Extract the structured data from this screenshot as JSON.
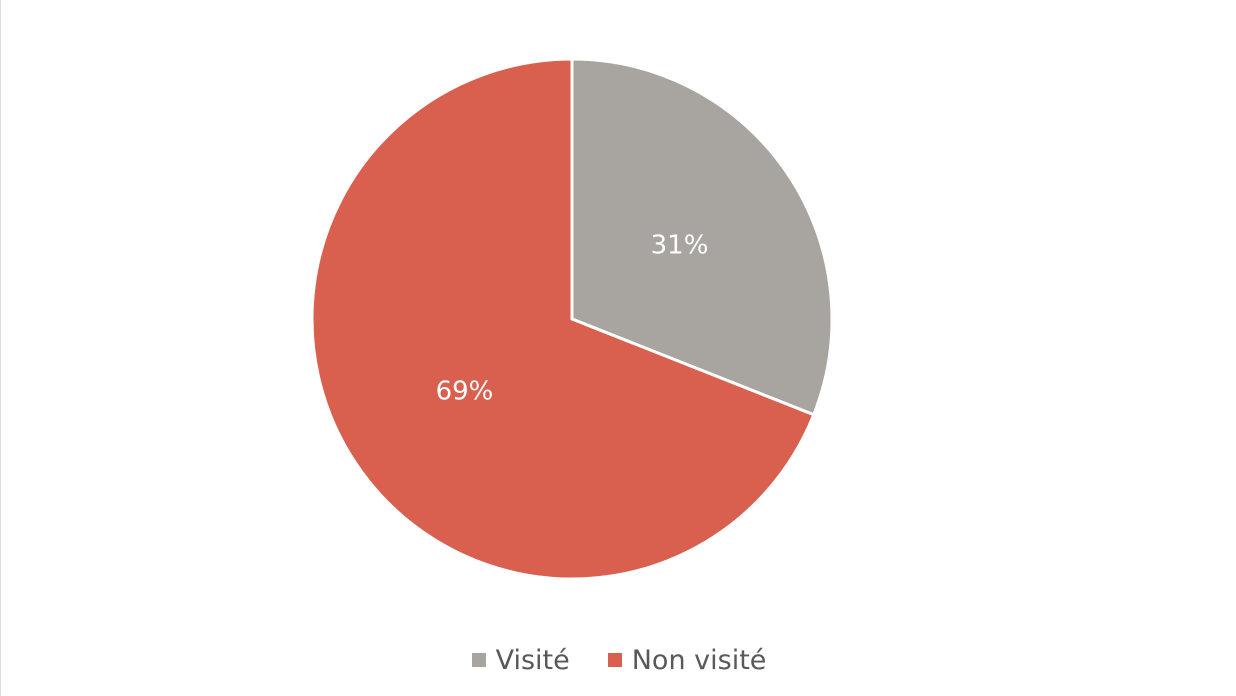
{
  "chart_data": {
    "type": "pie",
    "title": "",
    "slices": [
      {
        "label": "Visité",
        "value": 31,
        "display": "31%",
        "color": "#a8a5a0"
      },
      {
        "label": "Non visité",
        "value": 69,
        "display": "69%",
        "color": "#d95f4e"
      }
    ],
    "start_angle": "top",
    "direction": "clockwise",
    "legend_position": "bottom"
  },
  "legend": {
    "items": [
      {
        "label": "Visité",
        "color": "#a8a5a0"
      },
      {
        "label": "Non visité",
        "color": "#d95f4e"
      }
    ]
  }
}
